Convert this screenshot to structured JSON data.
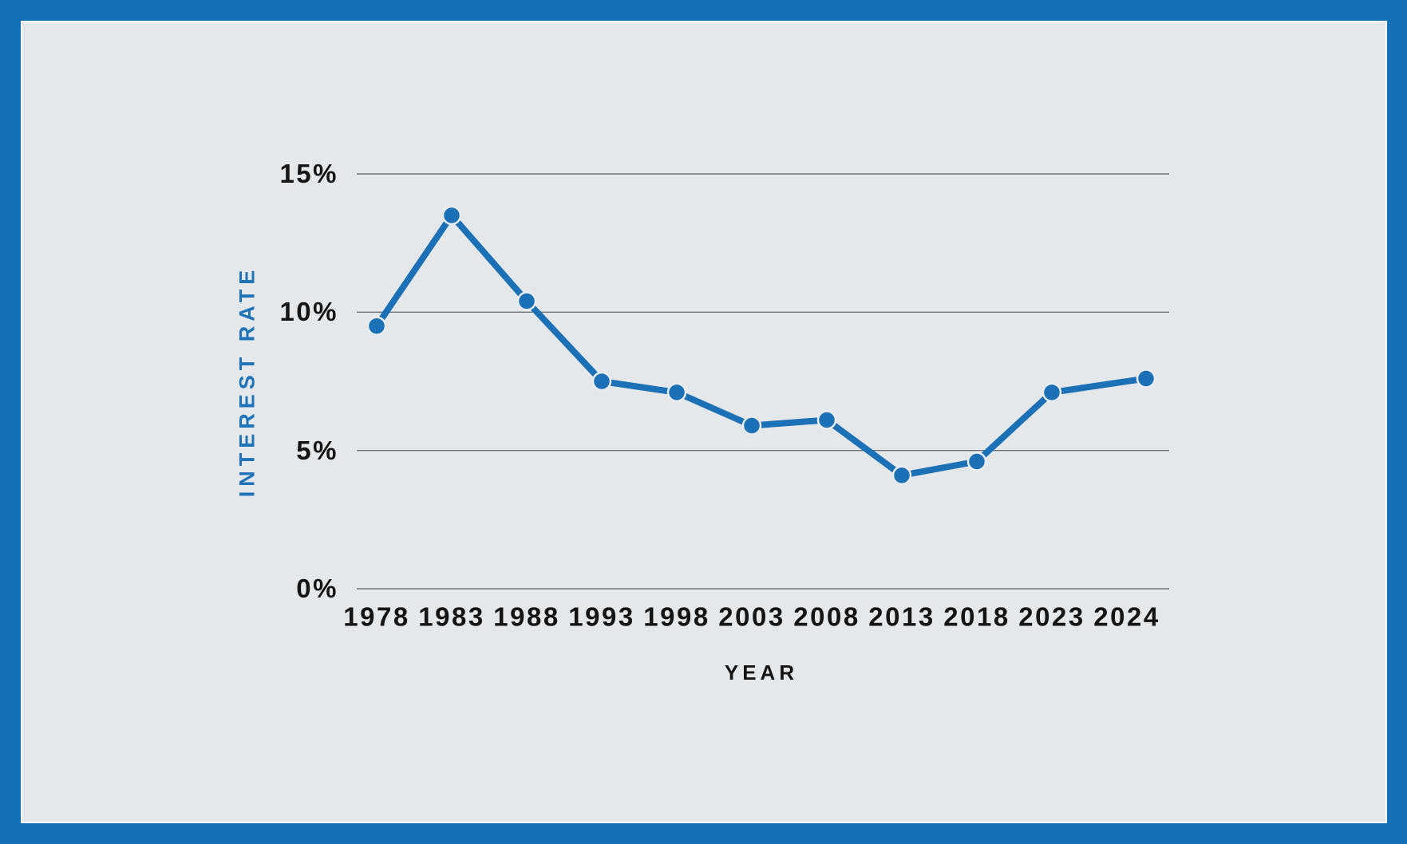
{
  "frame": {
    "border_color": "#1471B8",
    "inner_edge_color": "#F7FAFB",
    "panel_bg": "#E5E8EA"
  },
  "chart_data": {
    "type": "line",
    "title": "",
    "categories": [
      "1978",
      "1983",
      "1988",
      "1993",
      "1998",
      "2003",
      "2008",
      "2013",
      "2018",
      "2023",
      "2024"
    ],
    "series": [
      {
        "name": "Interest Rate",
        "values": [
          9.5,
          13.5,
          10.4,
          7.5,
          7.1,
          5.9,
          6.1,
          4.1,
          4.6,
          7.1,
          7.6
        ]
      }
    ],
    "xlabel": "YEAR",
    "ylabel": "INTEREST RATE",
    "ylim": [
      0,
      15
    ],
    "y_ticks": [
      {
        "value": 15,
        "label": "15%"
      },
      {
        "value": 10,
        "label": "10%"
      },
      {
        "value": 5,
        "label": "5%"
      },
      {
        "value": 0,
        "label": "0%"
      }
    ],
    "grid": "horizontal-only",
    "legend_position": "none",
    "line_color": "#1B70B6",
    "marker_color": "#1B70B6",
    "marker_halo_color": "#E9EDEF",
    "gridline_color": "#6E7073",
    "tick_label_color": "#121416",
    "y_axis_title_color": "#1E73B9",
    "x_axis_title_color": "#121416"
  }
}
